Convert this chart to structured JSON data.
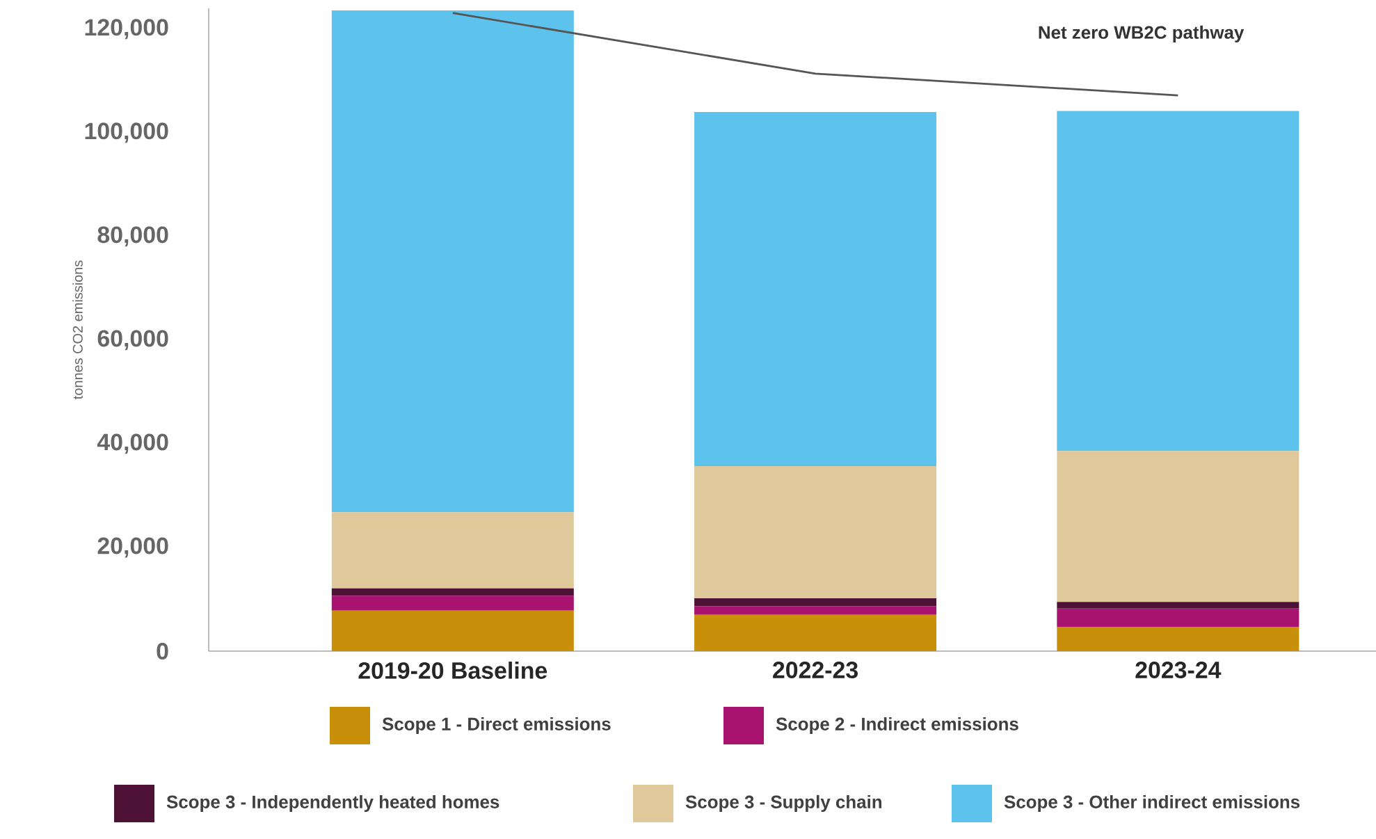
{
  "chart_data": {
    "type": "bar",
    "stacked": true,
    "ylabel": "tonnes CO2 emissions",
    "categories": [
      "2019-20 Baseline",
      "2022-23",
      "2023-24"
    ],
    "ylim": [
      0,
      124000
    ],
    "yticks": [
      0,
      {
        "value": 20000,
        "label": "20,000"
      },
      {
        "value": 40000,
        "label": "40,000"
      },
      {
        "value": 60000,
        "label": "60,000"
      },
      {
        "value": 80000,
        "label": "80,000"
      },
      {
        "value": 100000,
        "label": "100,000"
      },
      {
        "value": 120000,
        "label": "120,000"
      }
    ],
    "grid": false,
    "legend": "bottom",
    "series": [
      {
        "name": "Scope 1 - Direct emissions",
        "color": "#c8900a",
        "values": [
          7800,
          7000,
          4700
        ]
      },
      {
        "name": "Scope 2 - Indirect emissions",
        "color": "#a8136f",
        "values": [
          2900,
          1700,
          3500
        ]
      },
      {
        "name": "Scope 3 - Independently heated homes",
        "color": "#4e1237",
        "values": [
          1400,
          1500,
          1300
        ]
      },
      {
        "name": "Scope 3 - Supply chain",
        "color": "#dfc99b",
        "values": [
          14700,
          25500,
          29100
        ]
      },
      {
        "name": "Scope 3 - Other indirect emissions",
        "color": "#5dc3ec",
        "values": [
          96800,
          68300,
          65600
        ]
      },
      {
        "name": "Net zero WB2C pathway",
        "type": "line",
        "color": "#555555",
        "values": [
          123100,
          111400,
          107200
        ]
      }
    ]
  }
}
